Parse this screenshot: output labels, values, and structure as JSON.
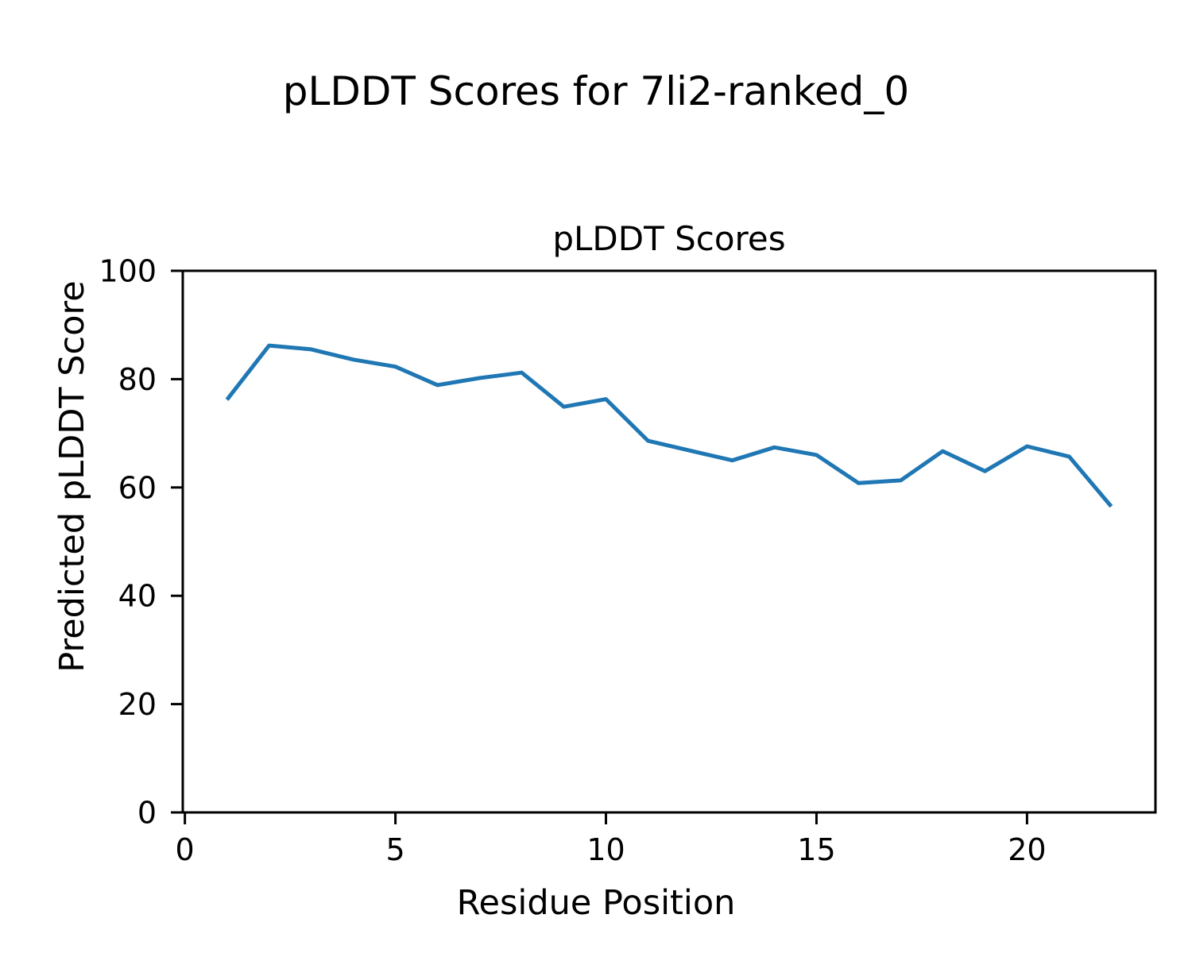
{
  "figure": {
    "suptitle": "pLDDT Scores for 7li2-ranked_0",
    "background_color": "#ffffff"
  },
  "chart_data": {
    "type": "line",
    "title": "pLDDT Scores",
    "xlabel": "Residue Position",
    "ylabel": "Predicted pLDDT Score",
    "x": [
      1,
      2,
      3,
      4,
      5,
      6,
      7,
      8,
      9,
      10,
      11,
      12,
      13,
      14,
      15,
      16,
      17,
      18,
      19,
      20,
      21,
      22
    ],
    "series": [
      {
        "name": "pLDDT",
        "values": [
          76.2,
          86.2,
          85.5,
          83.6,
          82.3,
          78.9,
          80.2,
          81.2,
          74.9,
          76.3,
          68.6,
          66.8,
          65.0,
          67.4,
          66.0,
          60.8,
          61.3,
          66.7,
          63.0,
          67.6,
          65.7,
          56.5
        ]
      }
    ],
    "xlim": [
      -0.05,
      23.05
    ],
    "ylim": [
      0,
      100
    ],
    "xticks": [
      0,
      5,
      10,
      15,
      20
    ],
    "yticks": [
      0,
      20,
      40,
      60,
      80,
      100
    ],
    "line_color": "#1f77b4",
    "spine_color": "#000000",
    "grid": false,
    "legend_position": "none"
  }
}
